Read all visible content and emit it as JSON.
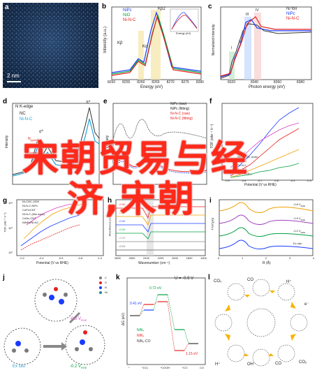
{
  "overlay": {
    "line1": "宋朝贸易与经",
    "line2": "济,宋朝"
  },
  "panels": {
    "a": {
      "label": "a",
      "scale_bar": "2 nm"
    },
    "b": {
      "label": "b",
      "xlabel": "Energy (eV)",
      "ylabel": "Intensity (a.u.)",
      "legend": [
        "NiPc",
        "NiO",
        "Ni-N-C"
      ],
      "peaks": [
        "Kβ",
        "Kα",
        "Kβ2"
      ],
      "ticks": [
        "8250",
        "8255",
        "8260",
        "8265",
        "8270",
        "8275",
        "8280"
      ],
      "inset_xlabel": "Energy (eV)"
    },
    "c": {
      "label": "c",
      "xlabel": "Photon energy (eV)",
      "ylabel": "Normalized intensity",
      "legend": [
        "Ni foil",
        "NiPc",
        "Ni-N-C"
      ],
      "peaks": [
        "I",
        "II",
        "III",
        "IV"
      ],
      "ticks": [
        "8320",
        "8340",
        "8360",
        "8380"
      ]
    },
    "d": {
      "label": "d",
      "title": "N K-edge",
      "ylabel": "Intensity",
      "legend": [
        "NC",
        "Ni-N-C"
      ],
      "peaks": [
        "π*",
        "σ*",
        "N",
        "N",
        "N"
      ],
      "subs": [
        "pyridinic",
        "graphitic",
        "pyrrolic"
      ]
    },
    "e": {
      "label": "e",
      "ylabel": "Intensity",
      "legend": [
        "NiPc (raw)",
        "NiPc (fitting)",
        "Ni-N-C (raw)",
        "Ni-N-C (fitting)"
      ]
    },
    "f": {
      "label": "f",
      "ylabel": "TOF (site⁻¹ h⁻¹)",
      "xlabel": "Potential (V vs RHE)",
      "legend": [
        "Ni-N-C",
        "Ni-N-C (lit. work)",
        "Co-N-C",
        "Fe-N-C",
        "Cu-N-C",
        "Ni-N-C (lit.)"
      ],
      "ticks": [
        "-0.9",
        "-0.8",
        "-0.7",
        "-0.6",
        "-0.5",
        "-0.4"
      ]
    },
    "g": {
      "label": "g",
      "ylabel": "TOF (site⁻¹ h⁻¹)",
      "xlabel": "Potential (V vs RHE)",
      "legend": [
        "Ni-CNC-1500",
        "Ni-N-C-NiPc",
        "CoPc/CNT",
        "Ni-N-C (this work)",
        "CoNc-CNT",
        "NiNPc/Ni-NC"
      ],
      "ticks": [
        "-0.2",
        "-0.4",
        "-0.6",
        "-0.8",
        "-1.0"
      ],
      "yticks": [
        "10⁴",
        "10³",
        "10²"
      ]
    },
    "h": {
      "label": "h",
      "ylabel": "Absorbance (a.u.)",
      "xlabel": "Wavenumber (cm⁻¹)",
      "traces": [
        "-0.9V",
        "-0.7V",
        "-0.5V",
        "-0.4V",
        "-0.3V",
        "-0.2V"
      ],
      "ticks": [
        "2800",
        "2600",
        "2400",
        "2200",
        "2000",
        "1800",
        "1600"
      ]
    },
    "i": {
      "label": "i",
      "ylabel": "FT(k³χ(k))",
      "xlabel": "R (Å)",
      "traces": [
        "-0.8 V",
        "-0.5 V",
        "-0.2 V",
        "Ex situ"
      ],
      "trace_sub": "RHE",
      "ticks": [
        "0",
        "1",
        "2",
        "3",
        "4"
      ]
    },
    "j": {
      "label": "j",
      "elements": [
        "C",
        "O",
        "N",
        "Ni"
      ],
      "states": [
        "Ex situ",
        "-0.2 V",
        "-0.5 V"
      ],
      "state_sub": "RHE"
    },
    "k": {
      "label": "k",
      "ylabel": "ΔG (eV)",
      "condition": "U = -0.9 V",
      "energies": [
        "0.41 eV",
        "0.72 eV",
        "1.15 eV"
      ],
      "legend": [
        "NiN₄",
        "NiN₃",
        "NiN₃-CO"
      ],
      "steps": [
        "*",
        "*CO₂",
        "*COOH",
        "*CO",
        "CO"
      ],
      "yticks": [
        "1.0",
        "0.5",
        "0.0",
        "-0.5",
        "-1.0",
        "-1.5",
        "-2.0",
        "-2.5",
        "-3.0"
      ]
    },
    "l": {
      "label": "l",
      "species": [
        "CO₂",
        "CO",
        "H⁺",
        "e⁻",
        "OH⁻",
        "CO",
        "H⁺",
        "CO₂"
      ]
    }
  }
}
